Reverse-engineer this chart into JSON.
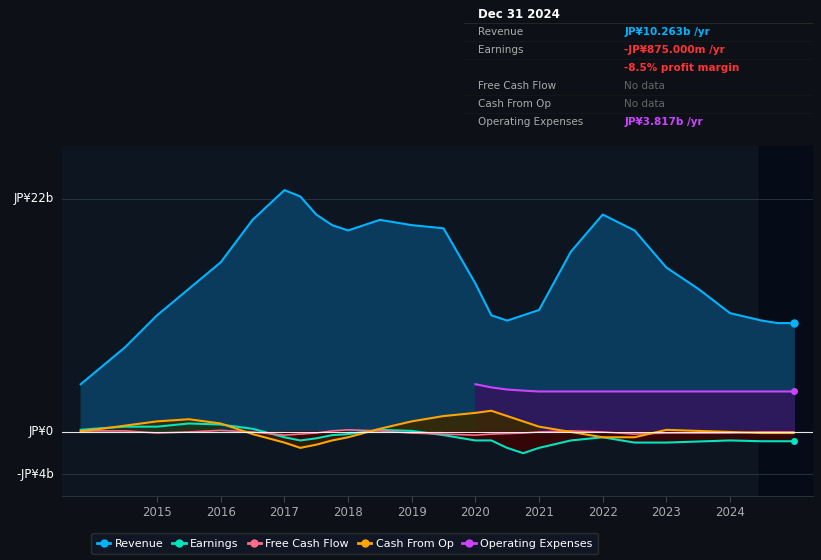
{
  "background_color": "#0d1117",
  "plot_bg_color": "#0d1520",
  "x_years": [
    2013.8,
    2014.0,
    2014.5,
    2015.0,
    2015.5,
    2016.0,
    2016.5,
    2017.0,
    2017.25,
    2017.5,
    2017.75,
    2018.0,
    2018.5,
    2019.0,
    2019.5,
    2020.0,
    2020.25,
    2020.5,
    2020.75,
    2021.0,
    2021.5,
    2022.0,
    2022.5,
    2023.0,
    2023.5,
    2024.0,
    2024.5,
    2024.75,
    2025.0
  ],
  "revenue": [
    4.5,
    5.5,
    8.0,
    11.0,
    13.5,
    16.0,
    20.0,
    22.8,
    22.2,
    20.5,
    19.5,
    19.0,
    20.0,
    19.5,
    19.2,
    14.0,
    11.0,
    10.5,
    11.0,
    11.5,
    17.0,
    20.5,
    19.0,
    15.5,
    13.5,
    11.2,
    10.5,
    10.263,
    10.263
  ],
  "earnings": [
    0.2,
    0.3,
    0.5,
    0.5,
    0.8,
    0.7,
    0.3,
    -0.5,
    -0.8,
    -0.6,
    -0.3,
    -0.2,
    0.2,
    0.1,
    -0.3,
    -0.8,
    -0.8,
    -1.5,
    -2.0,
    -1.5,
    -0.8,
    -0.5,
    -1.0,
    -1.0,
    -0.9,
    -0.8,
    -0.875,
    -0.875,
    -0.875
  ],
  "free_cash_flow": [
    0.05,
    0.1,
    0.1,
    -0.1,
    0.0,
    0.15,
    0.0,
    -0.3,
    -0.2,
    -0.1,
    0.1,
    0.2,
    0.1,
    -0.1,
    -0.2,
    -0.3,
    -0.2,
    -0.15,
    -0.1,
    0.0,
    0.1,
    0.0,
    -0.2,
    -0.1,
    -0.1,
    -0.1,
    0.0,
    0.0,
    0.0
  ],
  "cash_from_op": [
    0.1,
    0.2,
    0.6,
    1.0,
    1.2,
    0.8,
    -0.2,
    -1.0,
    -1.5,
    -1.2,
    -0.8,
    -0.5,
    0.3,
    1.0,
    1.5,
    1.8,
    2.0,
    1.5,
    1.0,
    0.5,
    0.0,
    -0.5,
    -0.5,
    0.2,
    0.1,
    0.0,
    -0.1,
    -0.1,
    -0.1
  ],
  "op_expenses": [
    0.0,
    0.0,
    0.0,
    0.0,
    0.0,
    0.0,
    0.0,
    0.0,
    0.0,
    0.0,
    0.0,
    0.0,
    0.0,
    0.0,
    0.0,
    4.5,
    4.2,
    4.0,
    3.9,
    3.817,
    3.817,
    3.817,
    3.817,
    3.817,
    3.817,
    3.817,
    3.817,
    3.817,
    3.817
  ],
  "revenue_color": "#00b4ff",
  "revenue_fill": "#0a3a5c",
  "earnings_color": "#00e5c0",
  "free_cash_flow_color": "#ff6b8a",
  "cash_from_op_color": "#ffa500",
  "op_expenses_color": "#cc44ff",
  "op_expenses_fill": "#2d1a5c",
  "xlim": [
    2013.5,
    2025.3
  ],
  "ylim": [
    -6.0,
    27.0
  ],
  "ytick_22_label": "JP¥22b",
  "ytick_0_label": "JP¥0",
  "ytick_m4_label": "-JP¥4b",
  "xticks": [
    2015,
    2016,
    2017,
    2018,
    2019,
    2020,
    2021,
    2022,
    2023,
    2024
  ],
  "info_box": {
    "title": "Dec 31 2024",
    "labels": [
      "Revenue",
      "Earnings",
      "",
      "Free Cash Flow",
      "Cash From Op",
      "Operating Expenses"
    ],
    "values": [
      "JP¥10.263b /yr",
      "-JP¥875.000m /yr",
      "-8.5% profit margin",
      "No data",
      "No data",
      "JP¥3.817b /yr"
    ],
    "value_colors": [
      "#00b4ff",
      "#ff3333",
      "#ff3333",
      "#666666",
      "#666666",
      "#cc44ff"
    ],
    "bg": "#080808",
    "border": "#333333"
  },
  "legend": [
    {
      "label": "Revenue",
      "color": "#00b4ff"
    },
    {
      "label": "Earnings",
      "color": "#00e5c0"
    },
    {
      "label": "Free Cash Flow",
      "color": "#ff6b8a"
    },
    {
      "label": "Cash From Op",
      "color": "#ffa500"
    },
    {
      "label": "Operating Expenses",
      "color": "#cc44ff"
    }
  ]
}
